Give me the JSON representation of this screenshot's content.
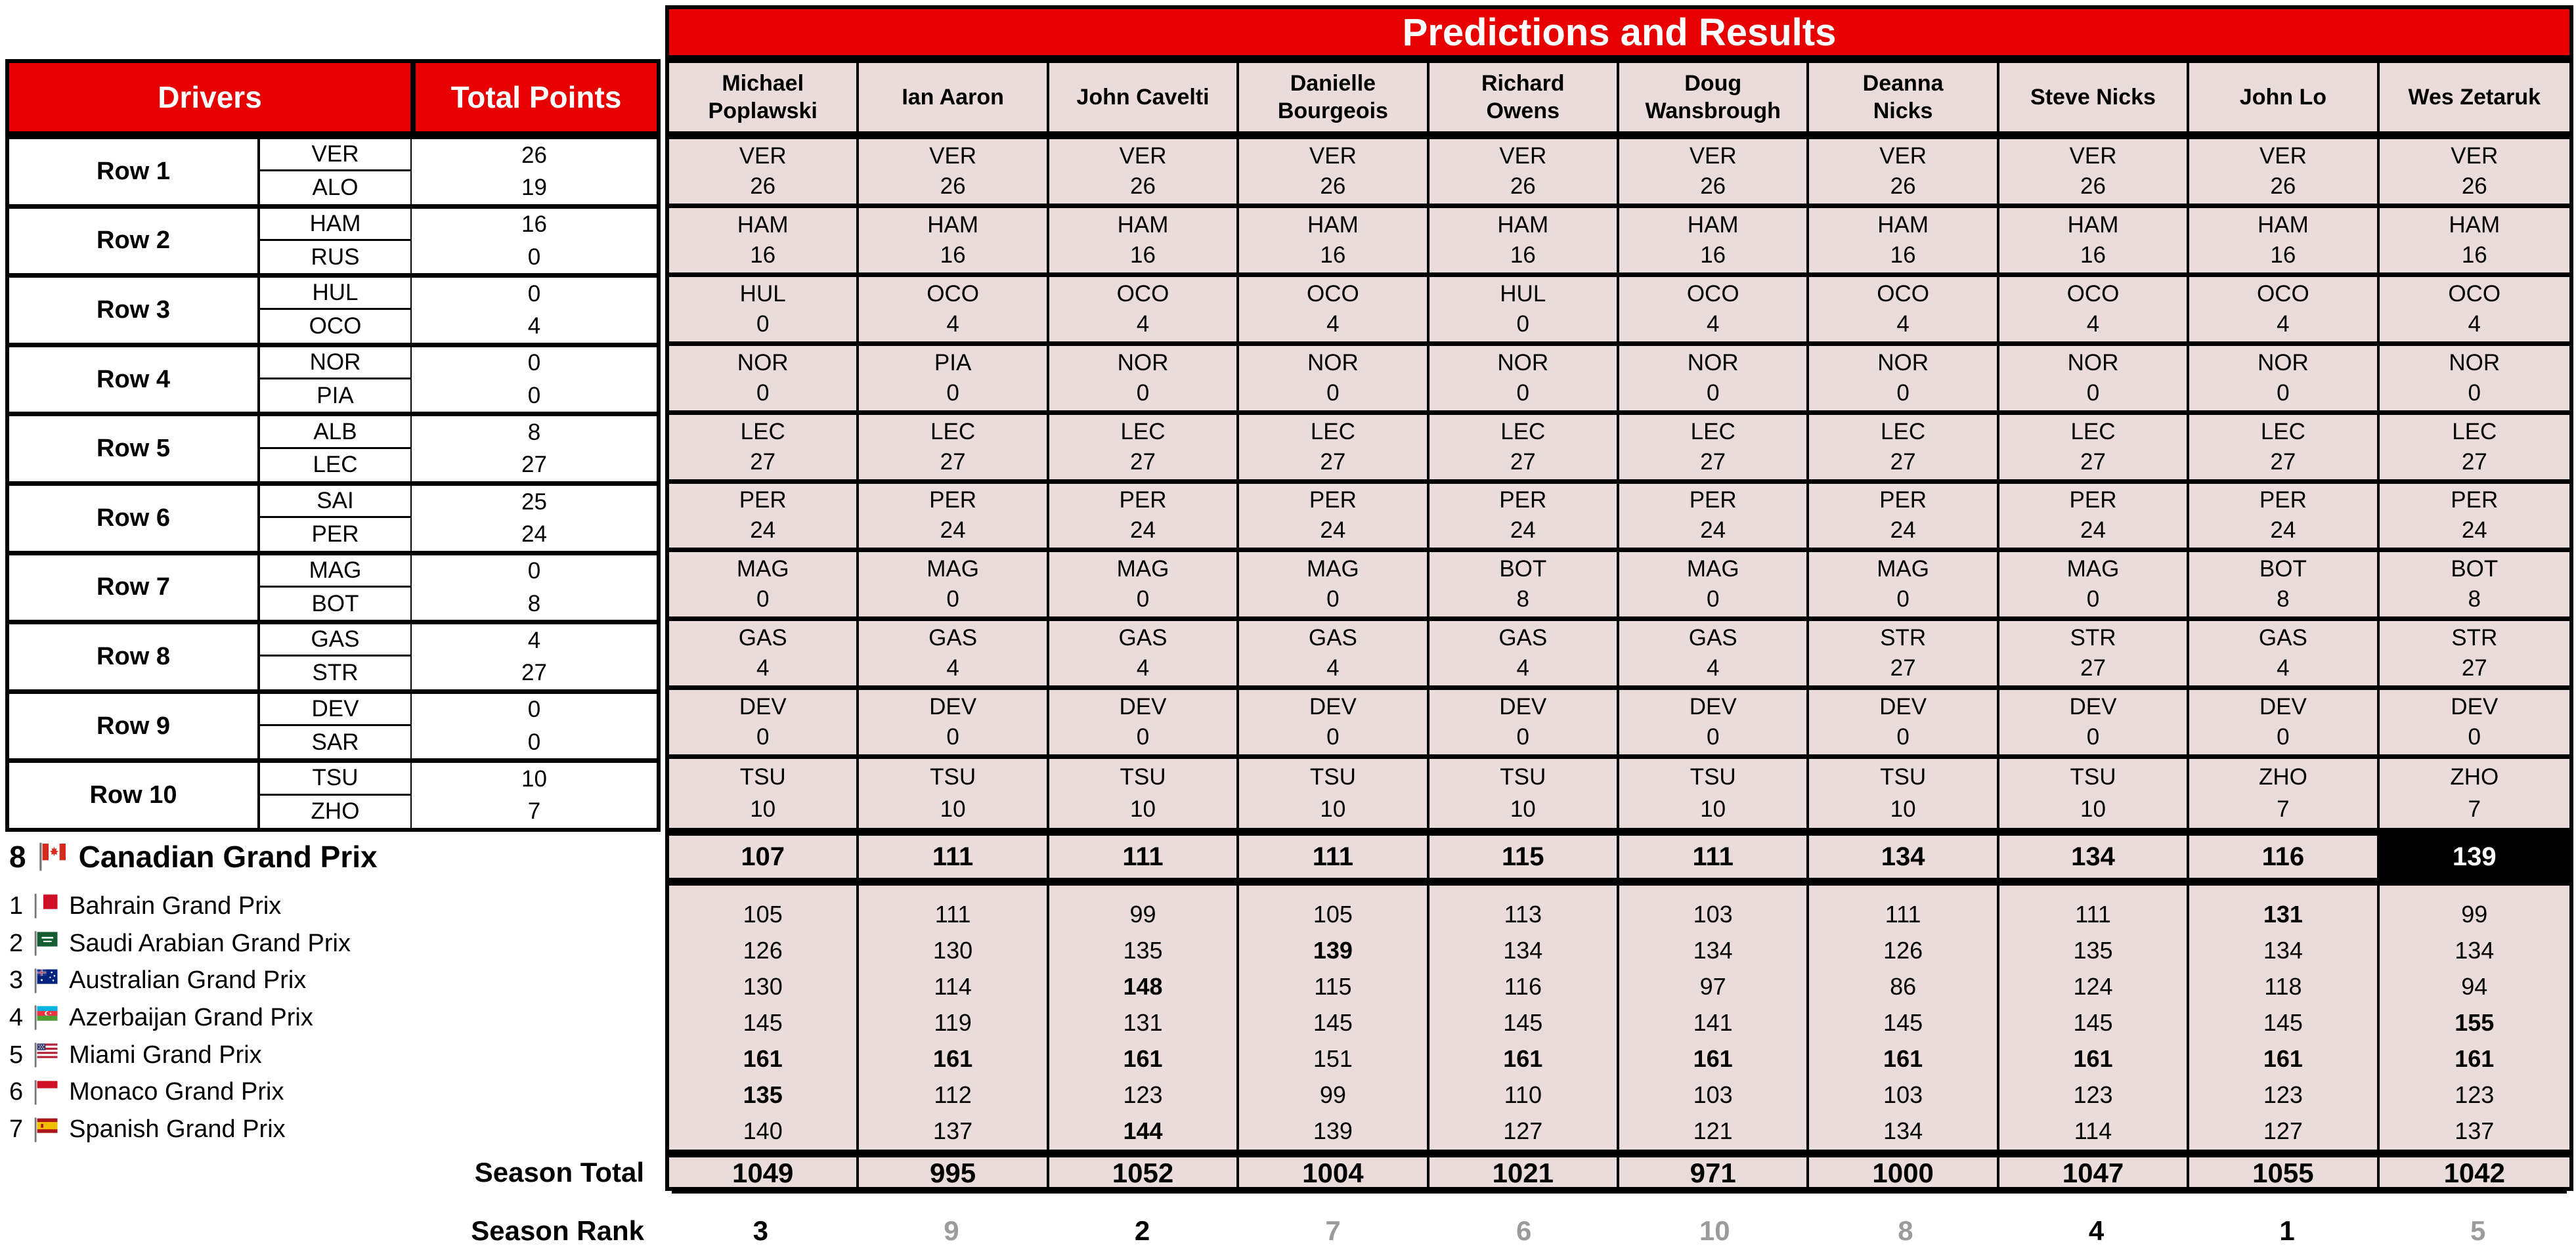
{
  "banner": {
    "title": "Predictions and Results"
  },
  "left_table": {
    "drivers_header": "Drivers",
    "total_points_header": "Total Points",
    "rows": [
      {
        "label": "Row 1",
        "drivers": [
          {
            "code": "VER",
            "points": "26"
          },
          {
            "code": "ALO",
            "points": "19"
          }
        ]
      },
      {
        "label": "Row 2",
        "drivers": [
          {
            "code": "HAM",
            "points": "16"
          },
          {
            "code": "RUS",
            "points": "0"
          }
        ]
      },
      {
        "label": "Row 3",
        "drivers": [
          {
            "code": "HUL",
            "points": "0"
          },
          {
            "code": "OCO",
            "points": "4"
          }
        ]
      },
      {
        "label": "Row 4",
        "drivers": [
          {
            "code": "NOR",
            "points": "0"
          },
          {
            "code": "PIA",
            "points": "0"
          }
        ]
      },
      {
        "label": "Row 5",
        "drivers": [
          {
            "code": "ALB",
            "points": "8"
          },
          {
            "code": "LEC",
            "points": "27"
          }
        ]
      },
      {
        "label": "Row 6",
        "drivers": [
          {
            "code": "SAI",
            "points": "25"
          },
          {
            "code": "PER",
            "points": "24"
          }
        ]
      },
      {
        "label": "Row 7",
        "drivers": [
          {
            "code": "MAG",
            "points": "0"
          },
          {
            "code": "BOT",
            "points": "8"
          }
        ]
      },
      {
        "label": "Row 8",
        "drivers": [
          {
            "code": "GAS",
            "points": "4"
          },
          {
            "code": "STR",
            "points": "27"
          }
        ]
      },
      {
        "label": "Row 9",
        "drivers": [
          {
            "code": "DEV",
            "points": "0"
          },
          {
            "code": "SAR",
            "points": "0"
          }
        ]
      },
      {
        "label": "Row 10",
        "drivers": [
          {
            "code": "TSU",
            "points": "10"
          },
          {
            "code": "ZHO",
            "points": "7"
          }
        ]
      }
    ]
  },
  "players": [
    "Michael\nPoplawski",
    "Ian Aaron",
    "John Cavelti",
    "Danielle\nBourgeois",
    "Richard\nOwens",
    "Doug\nWansbrough",
    "Deanna\nNicks",
    "Steve Nicks",
    "John Lo",
    "Wes Zetaruk"
  ],
  "predictions": [
    [
      {
        "code": "VER",
        "points": "26"
      },
      {
        "code": "VER",
        "points": "26"
      },
      {
        "code": "VER",
        "points": "26"
      },
      {
        "code": "VER",
        "points": "26"
      },
      {
        "code": "VER",
        "points": "26"
      },
      {
        "code": "VER",
        "points": "26"
      },
      {
        "code": "VER",
        "points": "26"
      },
      {
        "code": "VER",
        "points": "26"
      },
      {
        "code": "VER",
        "points": "26"
      },
      {
        "code": "VER",
        "points": "26"
      }
    ],
    [
      {
        "code": "HAM",
        "points": "16"
      },
      {
        "code": "HAM",
        "points": "16"
      },
      {
        "code": "HAM",
        "points": "16"
      },
      {
        "code": "HAM",
        "points": "16"
      },
      {
        "code": "HAM",
        "points": "16"
      },
      {
        "code": "HAM",
        "points": "16"
      },
      {
        "code": "HAM",
        "points": "16"
      },
      {
        "code": "HAM",
        "points": "16"
      },
      {
        "code": "HAM",
        "points": "16"
      },
      {
        "code": "HAM",
        "points": "16"
      }
    ],
    [
      {
        "code": "HUL",
        "points": "0"
      },
      {
        "code": "OCO",
        "points": "4"
      },
      {
        "code": "OCO",
        "points": "4"
      },
      {
        "code": "OCO",
        "points": "4"
      },
      {
        "code": "HUL",
        "points": "0"
      },
      {
        "code": "OCO",
        "points": "4"
      },
      {
        "code": "OCO",
        "points": "4"
      },
      {
        "code": "OCO",
        "points": "4"
      },
      {
        "code": "OCO",
        "points": "4"
      },
      {
        "code": "OCO",
        "points": "4"
      }
    ],
    [
      {
        "code": "NOR",
        "points": "0"
      },
      {
        "code": "PIA",
        "points": "0"
      },
      {
        "code": "NOR",
        "points": "0"
      },
      {
        "code": "NOR",
        "points": "0"
      },
      {
        "code": "NOR",
        "points": "0"
      },
      {
        "code": "NOR",
        "points": "0"
      },
      {
        "code": "NOR",
        "points": "0"
      },
      {
        "code": "NOR",
        "points": "0"
      },
      {
        "code": "NOR",
        "points": "0"
      },
      {
        "code": "NOR",
        "points": "0"
      }
    ],
    [
      {
        "code": "LEC",
        "points": "27"
      },
      {
        "code": "LEC",
        "points": "27"
      },
      {
        "code": "LEC",
        "points": "27"
      },
      {
        "code": "LEC",
        "points": "27"
      },
      {
        "code": "LEC",
        "points": "27"
      },
      {
        "code": "LEC",
        "points": "27"
      },
      {
        "code": "LEC",
        "points": "27"
      },
      {
        "code": "LEC",
        "points": "27"
      },
      {
        "code": "LEC",
        "points": "27"
      },
      {
        "code": "LEC",
        "points": "27"
      }
    ],
    [
      {
        "code": "PER",
        "points": "24"
      },
      {
        "code": "PER",
        "points": "24"
      },
      {
        "code": "PER",
        "points": "24"
      },
      {
        "code": "PER",
        "points": "24"
      },
      {
        "code": "PER",
        "points": "24"
      },
      {
        "code": "PER",
        "points": "24"
      },
      {
        "code": "PER",
        "points": "24"
      },
      {
        "code": "PER",
        "points": "24"
      },
      {
        "code": "PER",
        "points": "24"
      },
      {
        "code": "PER",
        "points": "24"
      }
    ],
    [
      {
        "code": "MAG",
        "points": "0"
      },
      {
        "code": "MAG",
        "points": "0"
      },
      {
        "code": "MAG",
        "points": "0"
      },
      {
        "code": "MAG",
        "points": "0"
      },
      {
        "code": "BOT",
        "points": "8"
      },
      {
        "code": "MAG",
        "points": "0"
      },
      {
        "code": "MAG",
        "points": "0"
      },
      {
        "code": "MAG",
        "points": "0"
      },
      {
        "code": "BOT",
        "points": "8"
      },
      {
        "code": "BOT",
        "points": "8"
      }
    ],
    [
      {
        "code": "GAS",
        "points": "4"
      },
      {
        "code": "GAS",
        "points": "4"
      },
      {
        "code": "GAS",
        "points": "4"
      },
      {
        "code": "GAS",
        "points": "4"
      },
      {
        "code": "GAS",
        "points": "4"
      },
      {
        "code": "GAS",
        "points": "4"
      },
      {
        "code": "STR",
        "points": "27"
      },
      {
        "code": "STR",
        "points": "27"
      },
      {
        "code": "GAS",
        "points": "4"
      },
      {
        "code": "STR",
        "points": "27"
      }
    ],
    [
      {
        "code": "DEV",
        "points": "0"
      },
      {
        "code": "DEV",
        "points": "0"
      },
      {
        "code": "DEV",
        "points": "0"
      },
      {
        "code": "DEV",
        "points": "0"
      },
      {
        "code": "DEV",
        "points": "0"
      },
      {
        "code": "DEV",
        "points": "0"
      },
      {
        "code": "DEV",
        "points": "0"
      },
      {
        "code": "DEV",
        "points": "0"
      },
      {
        "code": "DEV",
        "points": "0"
      },
      {
        "code": "DEV",
        "points": "0"
      }
    ],
    [
      {
        "code": "TSU",
        "points": "10"
      },
      {
        "code": "TSU",
        "points": "10"
      },
      {
        "code": "TSU",
        "points": "10"
      },
      {
        "code": "TSU",
        "points": "10"
      },
      {
        "code": "TSU",
        "points": "10"
      },
      {
        "code": "TSU",
        "points": "10"
      },
      {
        "code": "TSU",
        "points": "10"
      },
      {
        "code": "TSU",
        "points": "10"
      },
      {
        "code": "ZHO",
        "points": "7"
      },
      {
        "code": "ZHO",
        "points": "7"
      }
    ]
  ],
  "current_race": {
    "number": "8",
    "flag": "canada",
    "name": "Canadian Grand Prix",
    "scores": [
      107,
      111,
      111,
      111,
      115,
      111,
      134,
      134,
      116,
      139
    ]
  },
  "past_races": [
    {
      "number": "1",
      "flag": "bahrain",
      "name": "Bahrain Grand Prix",
      "scores": [
        105,
        111,
        99,
        105,
        113,
        103,
        111,
        111,
        131,
        99
      ]
    },
    {
      "number": "2",
      "flag": "saudi-arabia",
      "name": "Saudi Arabian Grand Prix",
      "scores": [
        126,
        130,
        135,
        139,
        134,
        134,
        126,
        135,
        134,
        134
      ]
    },
    {
      "number": "3",
      "flag": "australia",
      "name": "Australian Grand Prix",
      "scores": [
        130,
        114,
        148,
        115,
        116,
        97,
        86,
        124,
        118,
        94
      ]
    },
    {
      "number": "4",
      "flag": "azerbaijan",
      "name": "Azerbaijan Grand Prix",
      "scores": [
        145,
        119,
        131,
        145,
        145,
        141,
        145,
        145,
        145,
        155
      ]
    },
    {
      "number": "5",
      "flag": "usa",
      "name": "Miami Grand Prix",
      "scores": [
        161,
        161,
        161,
        151,
        161,
        161,
        161,
        161,
        161,
        161
      ]
    },
    {
      "number": "6",
      "flag": "monaco",
      "name": "Monaco Grand Prix",
      "scores": [
        135,
        112,
        123,
        99,
        110,
        103,
        103,
        123,
        123,
        123
      ]
    },
    {
      "number": "7",
      "flag": "spain",
      "name": "Spanish Grand Prix",
      "scores": [
        140,
        137,
        144,
        139,
        127,
        121,
        134,
        114,
        127,
        137
      ]
    }
  ],
  "season_total": {
    "label": "Season Total",
    "values": [
      1049,
      995,
      1052,
      1004,
      1021,
      971,
      1000,
      1047,
      1055,
      1042
    ]
  },
  "season_rank": {
    "label": "Season Rank",
    "values": [
      3,
      9,
      2,
      7,
      6,
      10,
      8,
      4,
      1,
      5
    ]
  },
  "colors": {
    "accent_red": "#e60000",
    "cell_pink": "#e9dcda",
    "highlight_black": "#000000",
    "highlight_text": "#ffffff",
    "rank_top": "#000000",
    "rank_other": "#9b9b9b"
  }
}
